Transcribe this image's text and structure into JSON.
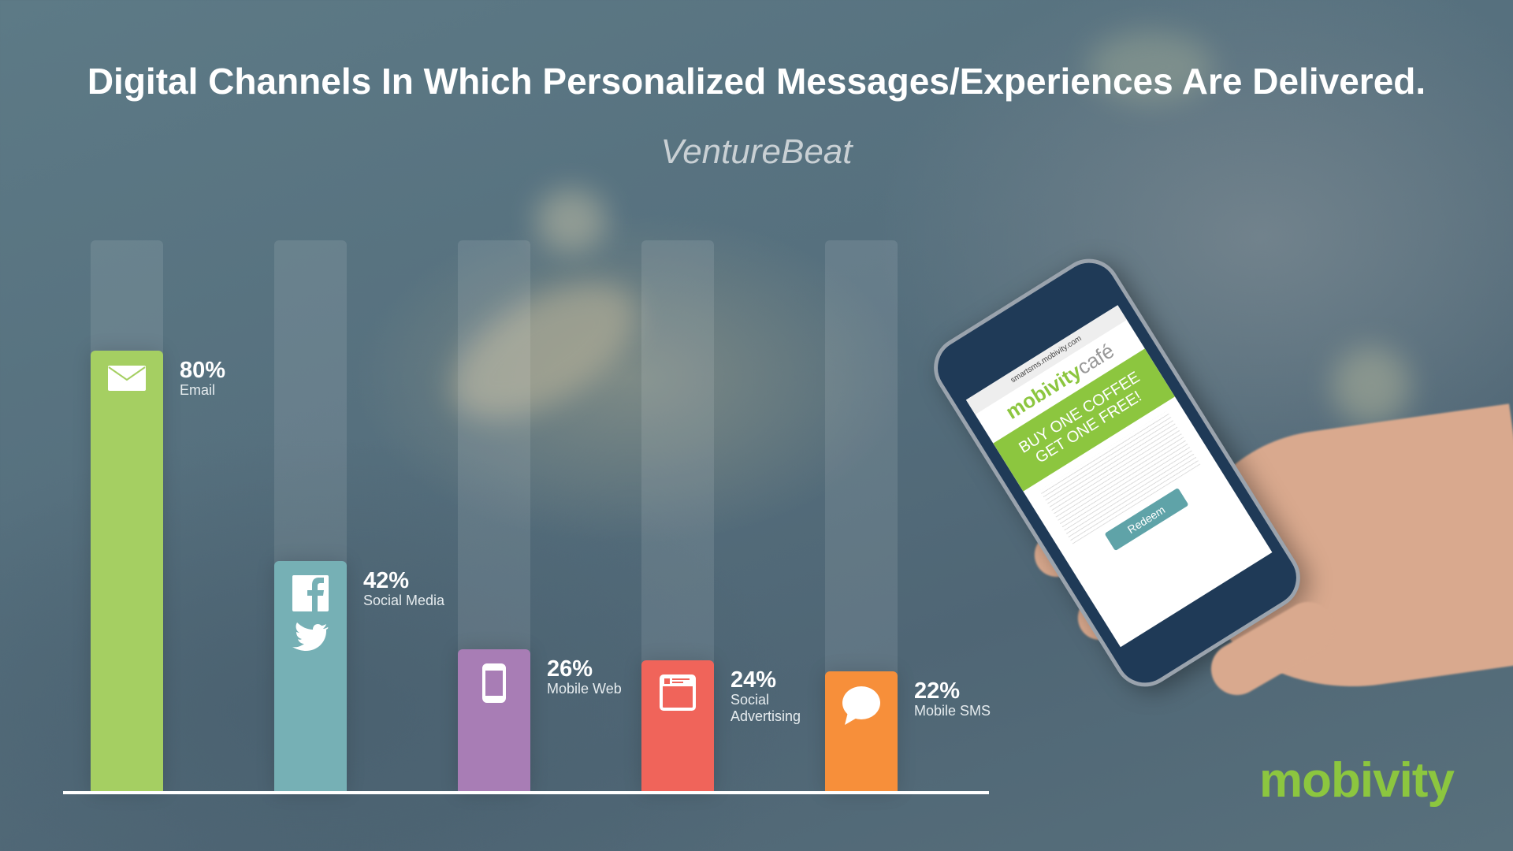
{
  "title": "Digital Channels In Which Personalized Messages/Experiences Are Delivered.",
  "source": "VentureBeat",
  "logo": "mobivity",
  "phone": {
    "url": "smartsms.mobivity.com",
    "brand_main": "mobivity",
    "brand_sub": "café",
    "promo_line1": "BUY ONE COFFEE",
    "promo_line2": "GET ONE FREE!",
    "button": "Redeem"
  },
  "chart_data": {
    "type": "bar",
    "title": "Digital Channels In Which Personalized Messages/Experiences Are Delivered.",
    "ylim": [
      0,
      100
    ],
    "grid": false,
    "categories": [
      "Email",
      "Social Media",
      "Mobile Web",
      "Social Advertising",
      "Mobile SMS"
    ],
    "values": [
      80,
      42,
      26,
      24,
      22
    ],
    "labels": [
      "80%",
      "42%",
      "26%",
      "24%",
      "22%"
    ],
    "colors": [
      "#a5cf62",
      "#76b0b5",
      "#a87db5",
      "#f0645a",
      "#f78f3a"
    ],
    "icons": [
      "envelope-icon",
      "facebook-twitter-icon",
      "smartphone-icon",
      "browser-window-icon",
      "speech-bubble-icon"
    ]
  }
}
